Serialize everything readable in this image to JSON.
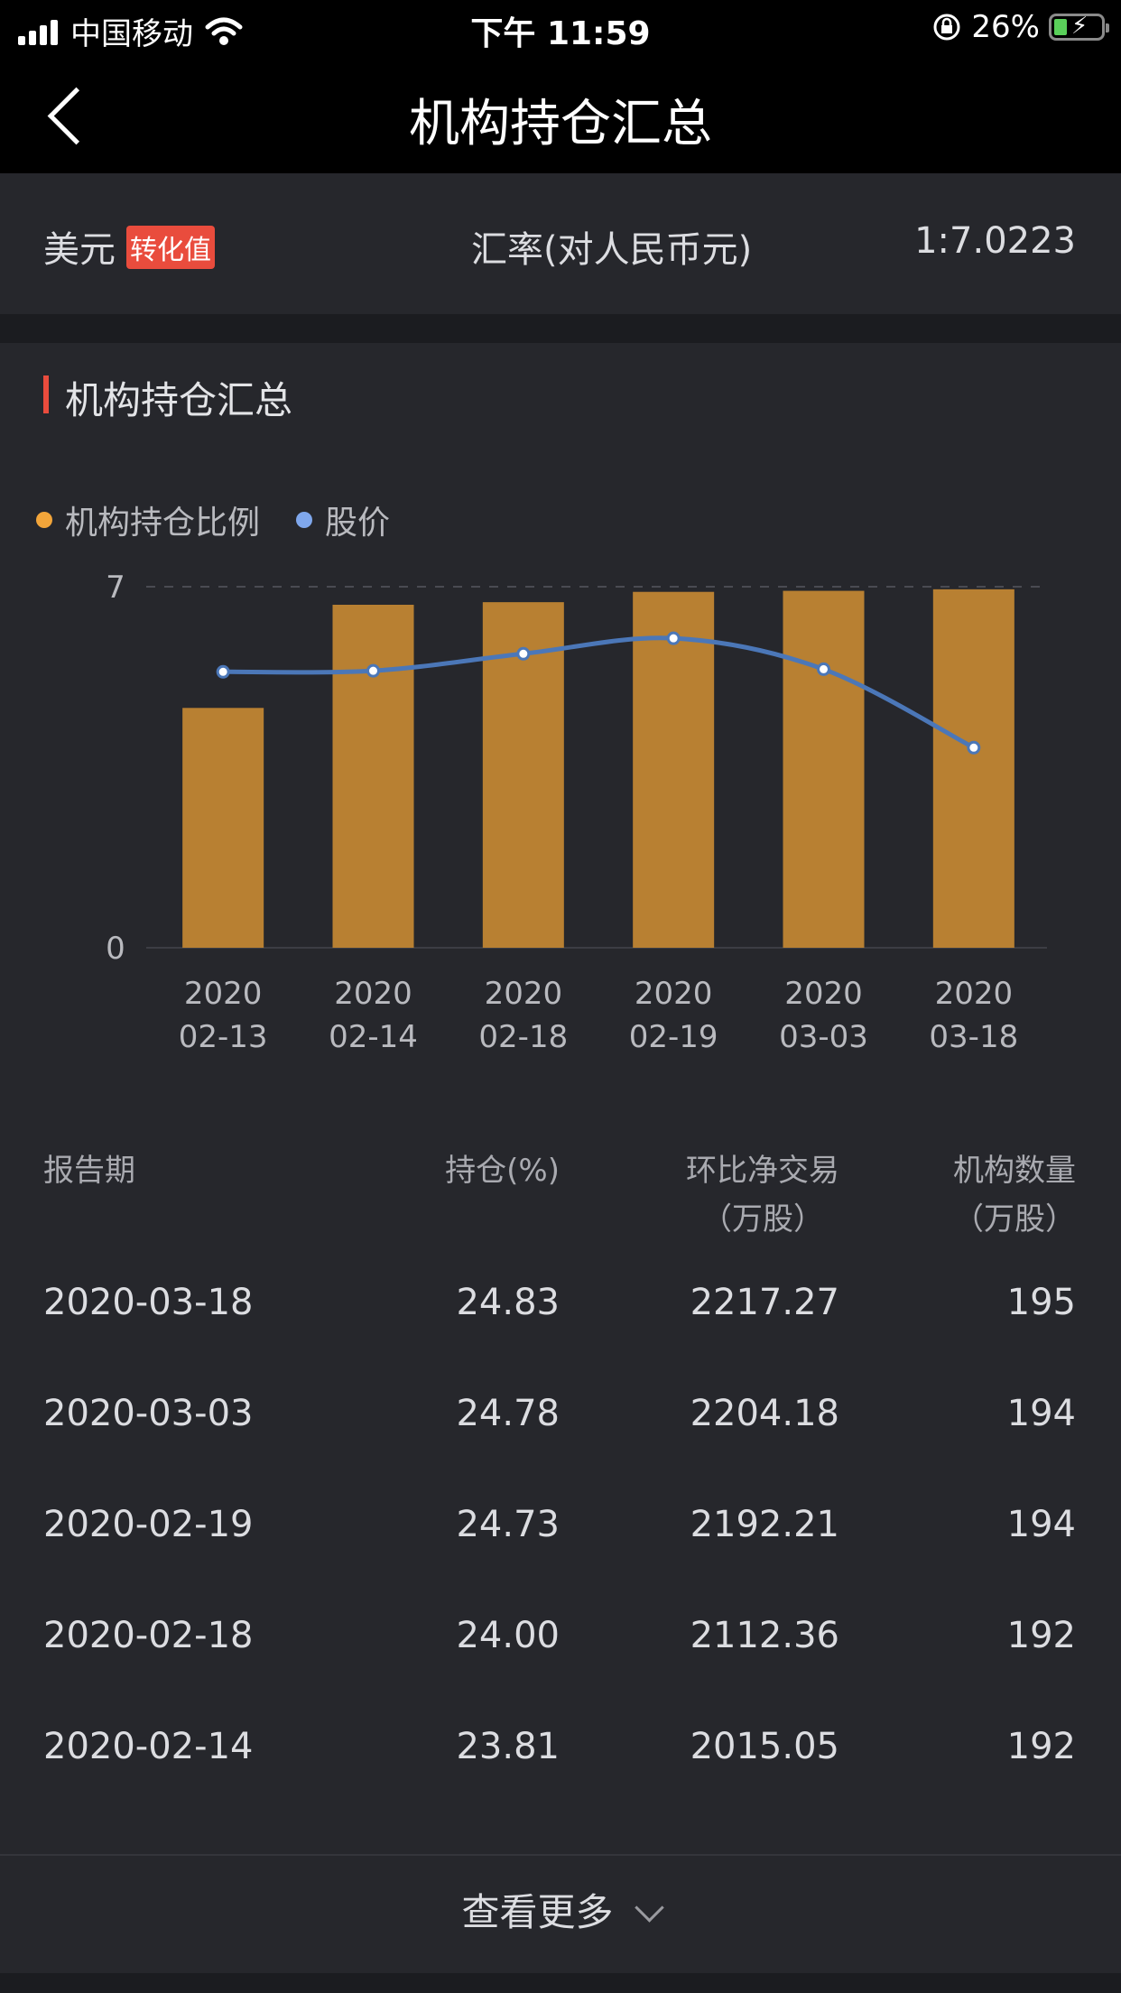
{
  "status": {
    "carrier": "中国移动",
    "time": "下午 11:59",
    "battery": "26%"
  },
  "nav": {
    "title": "机构持仓汇总"
  },
  "currency": {
    "label": "美元",
    "badge": "转化值",
    "rate_label": "汇率(对人民币元)",
    "rate": "1:7.0223"
  },
  "section": {
    "title": "机构持仓汇总"
  },
  "legend": [
    {
      "label": "机构持仓比例",
      "color": "#f2a53a"
    },
    {
      "label": "股价",
      "color": "#7fa7ec"
    }
  ],
  "chart_data": {
    "type": "bar",
    "categories": [
      "2020\n02-13",
      "2020\n02-14",
      "2020\n02-18",
      "2020\n02-19",
      "2020\n03-03",
      "2020\n03-18"
    ],
    "series": [
      {
        "name": "机构持仓比例",
        "type": "bar",
        "values": [
          4.65,
          6.65,
          6.7,
          6.9,
          6.92,
          6.95
        ],
        "color": "#b88032"
      },
      {
        "name": "股价",
        "type": "line",
        "values": [
          5.35,
          5.37,
          5.7,
          6.0,
          5.4,
          3.88
        ],
        "color": "#4b77b8"
      }
    ],
    "yticks": [
      "0",
      "7"
    ],
    "ylim": [
      0,
      7
    ],
    "grid": "dashed top line"
  },
  "table": {
    "headers": {
      "period": "报告期",
      "holding": "持仓(%)",
      "net_trade": "环比净交易",
      "net_trade_unit": "（万股）",
      "count": "机构数量",
      "count_unit": "（万股）"
    },
    "rows": [
      {
        "period": "2020-03-18",
        "holding": "24.83",
        "net_trade": "2217.27",
        "count": "195"
      },
      {
        "period": "2020-03-03",
        "holding": "24.78",
        "net_trade": "2204.18",
        "count": "194"
      },
      {
        "period": "2020-02-19",
        "holding": "24.73",
        "net_trade": "2192.21",
        "count": "194"
      },
      {
        "period": "2020-02-18",
        "holding": "24.00",
        "net_trade": "2112.36",
        "count": "192"
      },
      {
        "period": "2020-02-14",
        "holding": "23.81",
        "net_trade": "2015.05",
        "count": "192"
      }
    ]
  },
  "more": {
    "label": "查看更多"
  }
}
